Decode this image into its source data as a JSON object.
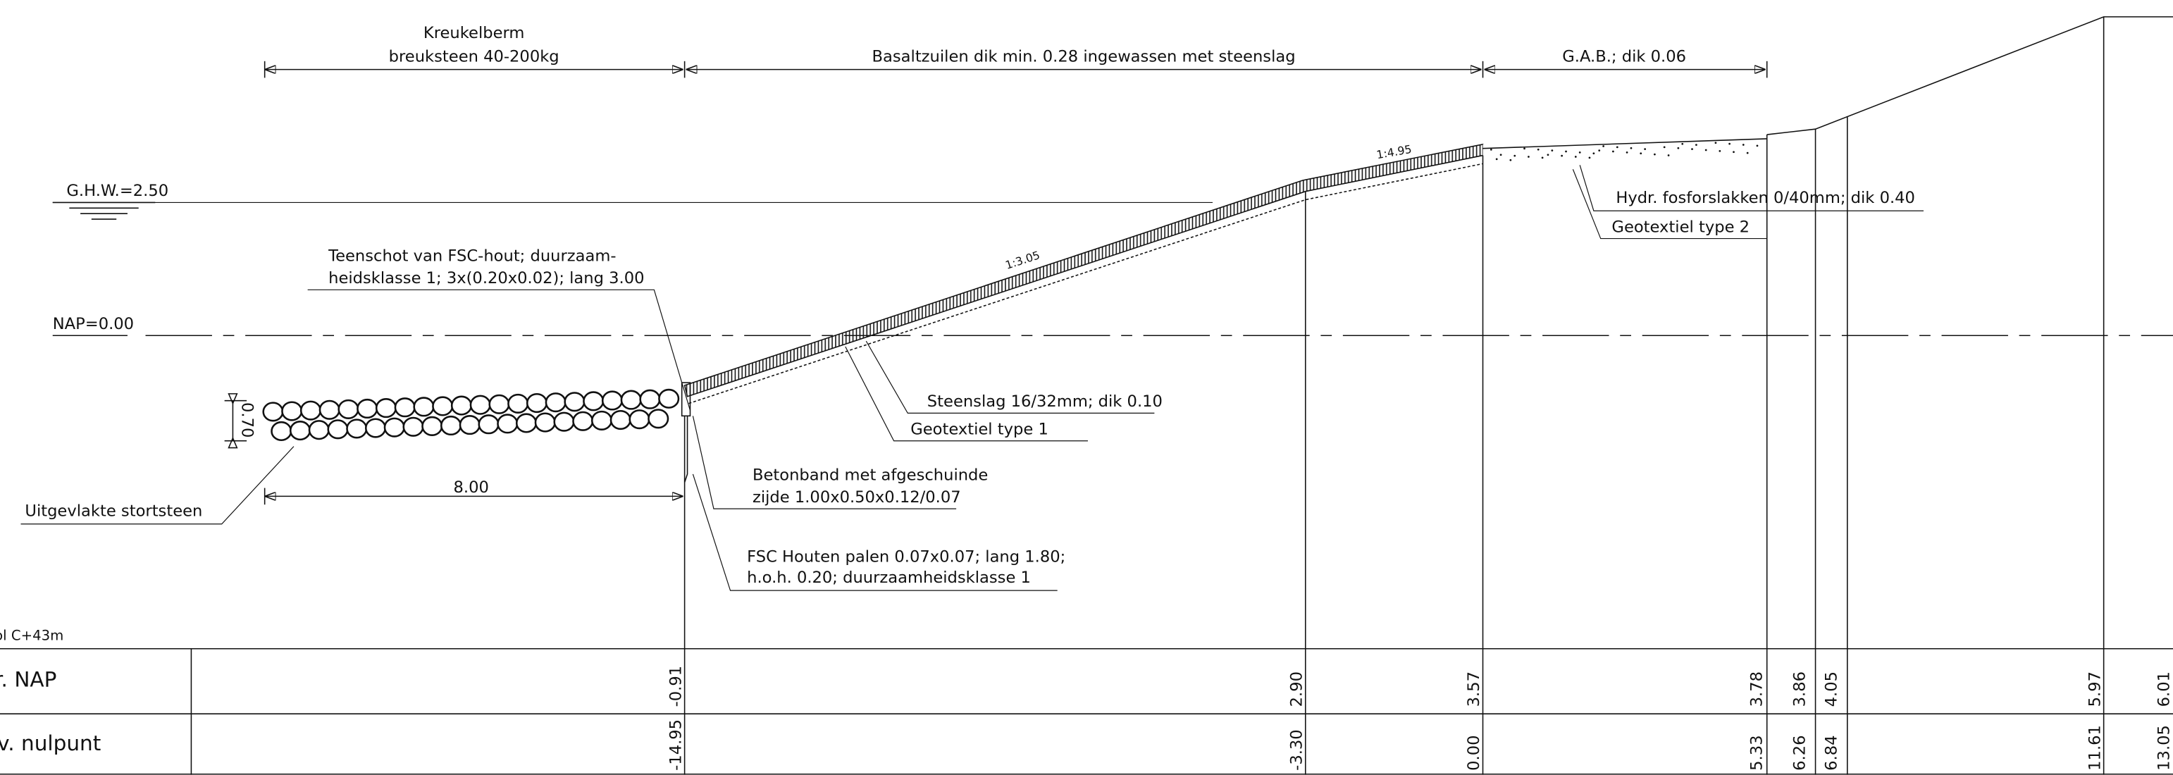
{
  "labels": {
    "kreukelberm": "Kreukelberm",
    "breuksteen": "breuksteen 40-200kg",
    "basaltzuilen": "Basaltzuilen dik min. 0.28 ingewassen met steenslag",
    "gab": "G.A.B.; dik 0.06",
    "ghw": "G.H.W.=2.50",
    "nap": "NAP=0.00",
    "teenschot_1": "Teenschot van FSC-hout; duurzaam-",
    "teenschot_2": "heidsklasse 1; 3x(0.20x0.02); lang 3.00",
    "slope_1": "1:3.05",
    "slope_2": "1:4.95",
    "steenslag": "Steenslag 16/32mm; dik 0.10",
    "geotextiel_1": "Geotextiel type 1",
    "thickness": "0.70",
    "stortsteen": "Uitgevlakte stortsteen",
    "width": "8.00",
    "betonband_1": "Betonband met afgeschuinde",
    "betonband_2": "zijde 1.00x0.50x0.12/0.07",
    "palen_1": "FSC Houten palen 0.07x0.07; lang 1.80;",
    "palen_2": "h.o.h. 0.20; duurzaamheidsklasse 1",
    "fosforslakken": "Hydr. fosforslakken 0/40mm; dik 0.40",
    "geotextiel_2": "Geotextiel type 2",
    "profile": "ol C+43m"
  },
  "table": {
    "rows": [
      {
        "label": "r. NAP",
        "values": [
          "-0.91",
          "2.90",
          "3.57",
          "3.78",
          "3.86",
          "4.05",
          "5.97",
          "6.01"
        ]
      },
      {
        "label": "v. nulpunt",
        "values": [
          "-14.95",
          "-3.30",
          "0.00",
          "5.33",
          "6.26",
          "6.84",
          "11.61",
          "13.05"
        ]
      }
    ]
  }
}
